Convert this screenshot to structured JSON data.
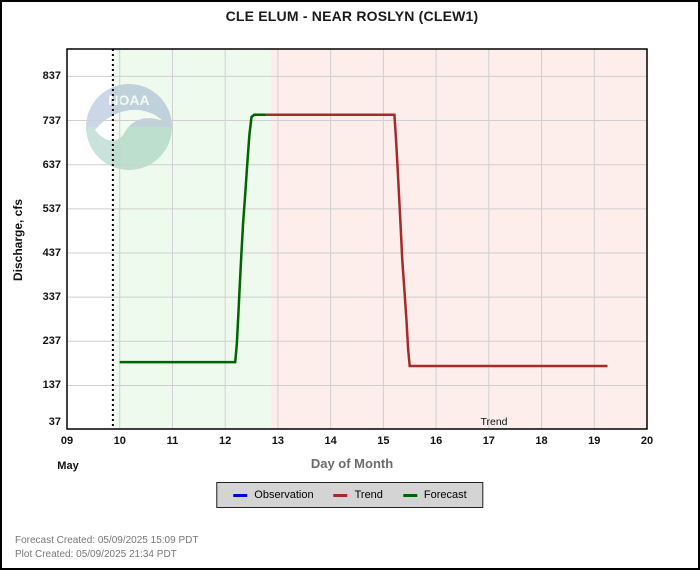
{
  "title": "CLE ELUM - NEAR ROSLYN  (CLEW1)",
  "chart_data": {
    "type": "line",
    "title": "CLE ELUM - NEAR ROSLYN  (CLEW1)",
    "xlabel": "Day of Month",
    "ylabel": "Discharge, cfs",
    "month_label": "May",
    "xlim": [
      9,
      20
    ],
    "ylim": [
      37,
      897
    ],
    "grid": true,
    "x_tick_labels": [
      "09",
      "10",
      "11",
      "12",
      "13",
      "14",
      "15",
      "16",
      "17",
      "18",
      "19",
      "20"
    ],
    "x_tick_values": [
      9,
      10,
      11,
      12,
      13,
      14,
      15,
      16,
      17,
      18,
      19,
      20
    ],
    "y_tick_labels": [
      "37",
      "137",
      "237",
      "337",
      "437",
      "537",
      "637",
      "737",
      "837"
    ],
    "y_tick_values": [
      37,
      137,
      237,
      337,
      437,
      537,
      637,
      737,
      837
    ],
    "now_line_day": 9.87,
    "regions": [
      {
        "name": "forecast-window",
        "start_day": 9.87,
        "end_day": 12.87,
        "color": "#edfaed"
      },
      {
        "name": "trend-window",
        "start_day": 12.87,
        "end_day": 20,
        "color": "#fdeeec"
      }
    ],
    "annotations": [
      {
        "text": "Trend",
        "day": 17.1,
        "value": 55
      }
    ],
    "series": [
      {
        "name": "Observation",
        "color": "#0000cc",
        "points": []
      },
      {
        "name": "Trend",
        "color": "#a52a2a",
        "points": [
          [
            12.78,
            750
          ],
          [
            15.21,
            750
          ],
          [
            15.24,
            695
          ],
          [
            15.27,
            630
          ],
          [
            15.3,
            560
          ],
          [
            15.33,
            490
          ],
          [
            15.36,
            420
          ],
          [
            15.4,
            350
          ],
          [
            15.44,
            280
          ],
          [
            15.47,
            220
          ],
          [
            15.5,
            181
          ],
          [
            19.25,
            181
          ]
        ]
      },
      {
        "name": "Forecast",
        "color": "#006400",
        "points": [
          [
            10.0,
            190
          ],
          [
            12.19,
            190
          ],
          [
            12.22,
            230
          ],
          [
            12.25,
            300
          ],
          [
            12.28,
            370
          ],
          [
            12.31,
            440
          ],
          [
            12.34,
            505
          ],
          [
            12.38,
            570
          ],
          [
            12.42,
            640
          ],
          [
            12.46,
            705
          ],
          [
            12.5,
            745
          ],
          [
            12.55,
            750
          ],
          [
            12.78,
            750
          ]
        ]
      }
    ],
    "legend_position": "bottom-center"
  },
  "legend": {
    "items": [
      {
        "label": "Observation",
        "color": "#0000cc"
      },
      {
        "label": "Trend",
        "color": "#a52a2a"
      },
      {
        "label": "Forecast",
        "color": "#006400"
      }
    ]
  },
  "watermark": {
    "text": "NOAA"
  },
  "footer": {
    "line1": "Forecast Created: 05/09/2025 15:09 PDT",
    "line2": "Plot Created: 05/09/2025 21:34 PDT"
  }
}
